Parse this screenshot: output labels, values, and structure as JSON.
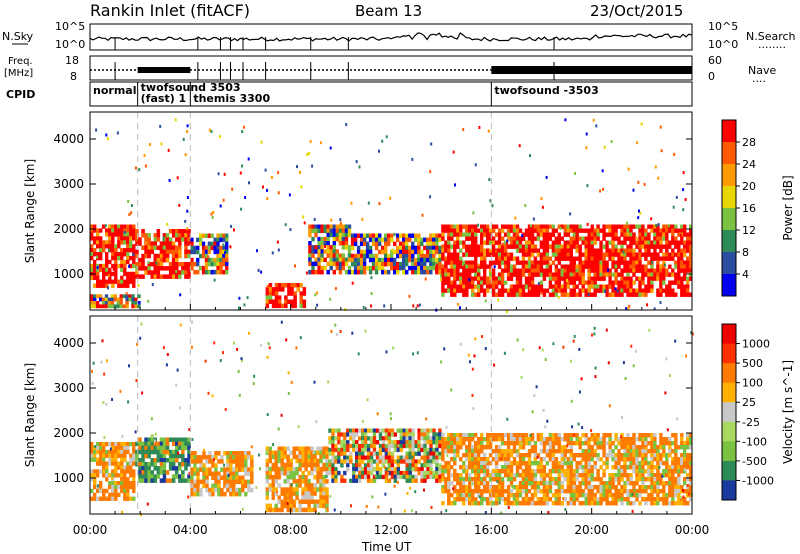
{
  "header": {
    "site": "Rankin Inlet (fitACF)",
    "beam": "Beam 13",
    "date": "23/Oct/2015"
  },
  "strip_labels": {
    "nsky": "N.Sky",
    "nsearch": "N.Search",
    "nsearch_dots": "........",
    "freq": "Freq.",
    "freq_unit": "[MHz]",
    "nave": "Nave",
    "nave_dots": "....",
    "cpid": "CPID",
    "nsky_ticks": [
      "10^5",
      "10^0"
    ],
    "freq_ticks": [
      "18",
      "8"
    ],
    "nave_ticks": [
      "60",
      "0"
    ]
  },
  "cpid_modes": [
    {
      "label": "normal",
      "start_h": 0.0
    },
    {
      "label": "twofsound 3503",
      "start_h": 1.9
    },
    {
      "label": "(fast) 1",
      "start_h": 1.9
    },
    {
      "label": "themis 3300",
      "start_h": 4.0
    },
    {
      "label": "twofsound -3503",
      "start_h": 16.0
    }
  ],
  "chart_data": [
    {
      "type": "heatmap",
      "name_panel": "power",
      "xlabel": "",
      "ylabel": "Slant Range [km]",
      "xlim_h": [
        0,
        24
      ],
      "ylim": [
        200,
        4600
      ],
      "y_ticks": [
        "1000",
        "2000",
        "3000",
        "4000"
      ],
      "colorbar": {
        "label": "Power [dB]",
        "ticks": [
          "28",
          "24",
          "20",
          "16",
          "12",
          "8",
          "4"
        ],
        "colors": [
          "#0000ee",
          "#2b4da0",
          "#2e8b57",
          "#7cc242",
          "#e8d600",
          "#ff9a00",
          "#ff5a00",
          "#ff0000"
        ]
      },
      "regions": [
        {
          "x": [
            0.0,
            1.8
          ],
          "y": [
            700,
            2100
          ],
          "level": "high"
        },
        {
          "x": [
            1.8,
            4.0
          ],
          "y": [
            900,
            2000
          ],
          "level": "high"
        },
        {
          "x": [
            4.0,
            5.5
          ],
          "y": [
            1000,
            1900
          ],
          "level": "mixed"
        },
        {
          "x": [
            7.0,
            8.6
          ],
          "y": [
            250,
            800
          ],
          "level": "high"
        },
        {
          "x": [
            8.7,
            10.4
          ],
          "y": [
            1000,
            2100
          ],
          "level": "mixed"
        },
        {
          "x": [
            10.4,
            14.0
          ],
          "y": [
            1000,
            1900
          ],
          "level": "mixed"
        },
        {
          "x": [
            14.0,
            24.0
          ],
          "y": [
            500,
            2100
          ],
          "level": "high"
        },
        {
          "x": [
            0.0,
            2.0
          ],
          "y": [
            250,
            550
          ],
          "level": "mixed"
        }
      ]
    },
    {
      "type": "heatmap",
      "name_panel": "velocity",
      "xlabel": "Time UT",
      "ylabel": "Slant Range [km]",
      "xlim_h": [
        0,
        24
      ],
      "ylim": [
        200,
        4600
      ],
      "x_ticks": [
        "00:00",
        "04:00",
        "08:00",
        "12:00",
        "16:00",
        "20:00",
        "00:00"
      ],
      "y_ticks": [
        "1000",
        "2000",
        "3000",
        "4000"
      ],
      "colorbar": {
        "label": "Velocity [m s^-1]",
        "ticks": [
          "1000",
          "500",
          "100",
          "25",
          "-25",
          "-100",
          "-500",
          "-1000"
        ],
        "colors": [
          "#1a3a9e",
          "#2e8b57",
          "#7cc242",
          "#a8d860",
          "#c8c8c8",
          "#ffb000",
          "#ff7a00",
          "#ff3000",
          "#ee0000"
        ]
      },
      "regions": [
        {
          "x": [
            0.0,
            1.8
          ],
          "y": [
            500,
            1800
          ],
          "level": "orange"
        },
        {
          "x": [
            1.8,
            4.0
          ],
          "y": [
            900,
            1900
          ],
          "level": "green"
        },
        {
          "x": [
            4.0,
            6.5
          ],
          "y": [
            600,
            1600
          ],
          "level": "orange"
        },
        {
          "x": [
            7.0,
            9.5
          ],
          "y": [
            250,
            1700
          ],
          "level": "orange"
        },
        {
          "x": [
            9.5,
            14.0
          ],
          "y": [
            900,
            2100
          ],
          "level": "mixed"
        },
        {
          "x": [
            14.0,
            24.0
          ],
          "y": [
            400,
            2000
          ],
          "level": "orange"
        }
      ]
    }
  ]
}
